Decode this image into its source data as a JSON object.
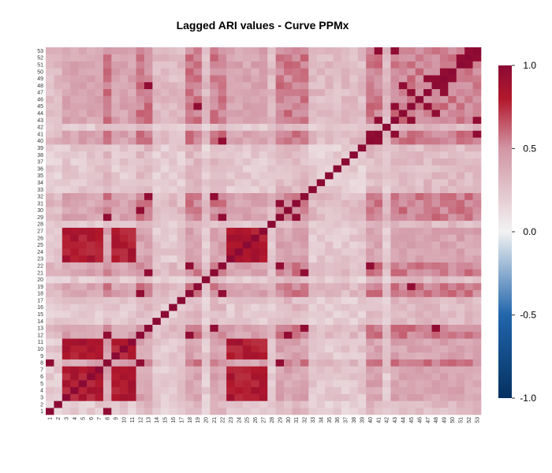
{
  "chart_data": {
    "type": "heatmap",
    "title": "Lagged ARI values - Curve PPMx",
    "xlabel": "",
    "ylabel": "",
    "n": 53,
    "x_tick_labels": [
      "1",
      "2",
      "3",
      "4",
      "5",
      "6",
      "7",
      "8",
      "9",
      "10",
      "11",
      "12",
      "13",
      "14",
      "15",
      "16",
      "17",
      "18",
      "19",
      "20",
      "21",
      "22",
      "23",
      "24",
      "25",
      "26",
      "27",
      "28",
      "29",
      "30",
      "31",
      "32",
      "33",
      "34",
      "35",
      "36",
      "37",
      "38",
      "39",
      "40",
      "41",
      "42",
      "43",
      "44",
      "45",
      "46",
      "47",
      "48",
      "49",
      "50",
      "51",
      "52",
      "53"
    ],
    "y_tick_labels": [
      "1",
      "2",
      "3",
      "4",
      "5",
      "6",
      "7",
      "8",
      "9",
      "10",
      "11",
      "12",
      "13",
      "14",
      "15",
      "16",
      "17",
      "18",
      "19",
      "20",
      "21",
      "22",
      "23",
      "24",
      "25",
      "26",
      "27",
      "28",
      "29",
      "30",
      "31",
      "32",
      "33",
      "34",
      "35",
      "36",
      "37",
      "38",
      "39",
      "40",
      "41",
      "42",
      "43",
      "44",
      "45",
      "46",
      "47",
      "48",
      "49",
      "50",
      "51",
      "52",
      "53"
    ],
    "value_range": [
      -1,
      1
    ],
    "colorbar": {
      "ticks": [
        1,
        0.5,
        0,
        -0.5,
        -1
      ],
      "tick_labels": [
        "1.0",
        "0.5",
        "0.0",
        "-0.5",
        "-1.0"
      ],
      "colors": {
        "low": "#053061",
        "mid_low": "#2166ac",
        "mid": "#f2f2f2",
        "mid_high": "#b2182b",
        "high": "#8b0a34"
      }
    },
    "group_A": [
      3,
      4,
      5,
      6,
      7,
      9,
      10,
      11,
      23,
      24,
      25,
      26,
      27
    ],
    "group_B": [
      8,
      12,
      13,
      18,
      19,
      21,
      22,
      29,
      30,
      31,
      32,
      40,
      41,
      43,
      44,
      45,
      46,
      47,
      48,
      49,
      50,
      51,
      52,
      53
    ],
    "group_C": [
      1,
      2,
      14,
      15,
      16,
      17,
      20,
      28,
      33,
      34,
      35,
      36,
      37,
      38,
      39,
      42
    ],
    "block_values": {
      "A_A": 0.82,
      "A_B": 0.42,
      "A_C": 0.22,
      "B_B": 0.55,
      "B_C": 0.3,
      "C_C": 0.2,
      "diagonal": 1.0
    },
    "high_pairs": [
      [
        1,
        8
      ],
      [
        8,
        12
      ],
      [
        12,
        18
      ],
      [
        13,
        21
      ],
      [
        13,
        32
      ],
      [
        13,
        48
      ],
      [
        18,
        22
      ],
      [
        21,
        32
      ],
      [
        22,
        29
      ],
      [
        22,
        40
      ],
      [
        29,
        31
      ],
      [
        40,
        41
      ],
      [
        41,
        43
      ],
      [
        43,
        45
      ],
      [
        44,
        48
      ],
      [
        45,
        47
      ],
      [
        47,
        49
      ],
      [
        49,
        50
      ],
      [
        51,
        52
      ],
      [
        52,
        53
      ],
      [
        8,
        29
      ],
      [
        12,
        30
      ],
      [
        19,
        45
      ],
      [
        41,
        53
      ],
      [
        43,
        53
      ],
      [
        48,
        49
      ]
    ],
    "legend": "right"
  }
}
